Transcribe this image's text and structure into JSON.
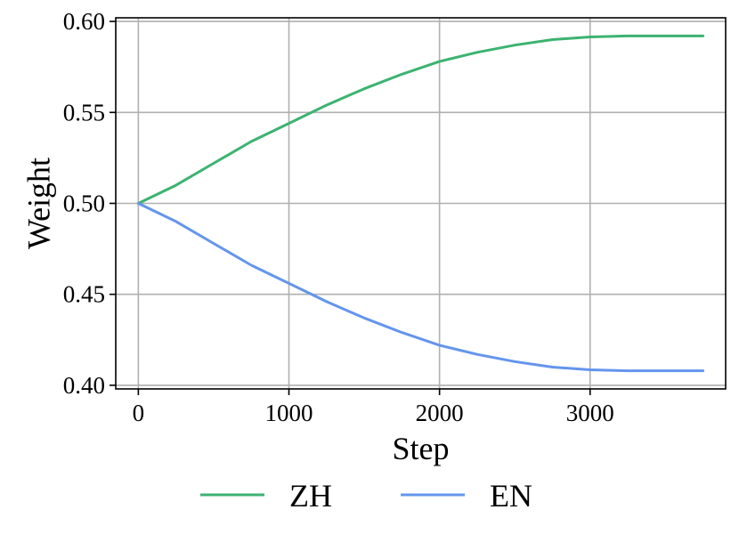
{
  "chart_data": {
    "type": "line",
    "xlabel": "Step",
    "ylabel": "Weight",
    "xlim": [
      -150,
      3900
    ],
    "ylim": [
      0.398,
      0.602
    ],
    "xticks": [
      0,
      1000,
      2000,
      3000
    ],
    "yticks": [
      0.4,
      0.45,
      0.5,
      0.55,
      0.6
    ],
    "xtick_labels": [
      "0",
      "1000",
      "2000",
      "3000"
    ],
    "ytick_labels": [
      "0.40",
      "0.45",
      "0.50",
      "0.55",
      "0.60"
    ],
    "grid": true,
    "legend_position": "bottom-center",
    "series": [
      {
        "name": "ZH",
        "color": "#3cb371",
        "x": [
          0,
          250,
          500,
          750,
          1000,
          1250,
          1500,
          1750,
          2000,
          2250,
          2500,
          2750,
          3000,
          3250,
          3500,
          3750
        ],
        "y": [
          0.5,
          0.51,
          0.522,
          0.534,
          0.544,
          0.554,
          0.563,
          0.571,
          0.578,
          0.583,
          0.587,
          0.59,
          0.5915,
          0.592,
          0.592,
          0.592
        ]
      },
      {
        "name": "EN",
        "color": "#6495ed",
        "x": [
          0,
          250,
          500,
          750,
          1000,
          1250,
          1500,
          1750,
          2000,
          2250,
          2500,
          2750,
          3000,
          3250,
          3500,
          3750
        ],
        "y": [
          0.5,
          0.49,
          0.478,
          0.466,
          0.456,
          0.446,
          0.437,
          0.429,
          0.422,
          0.417,
          0.413,
          0.41,
          0.4085,
          0.408,
          0.408,
          0.408
        ]
      }
    ]
  }
}
